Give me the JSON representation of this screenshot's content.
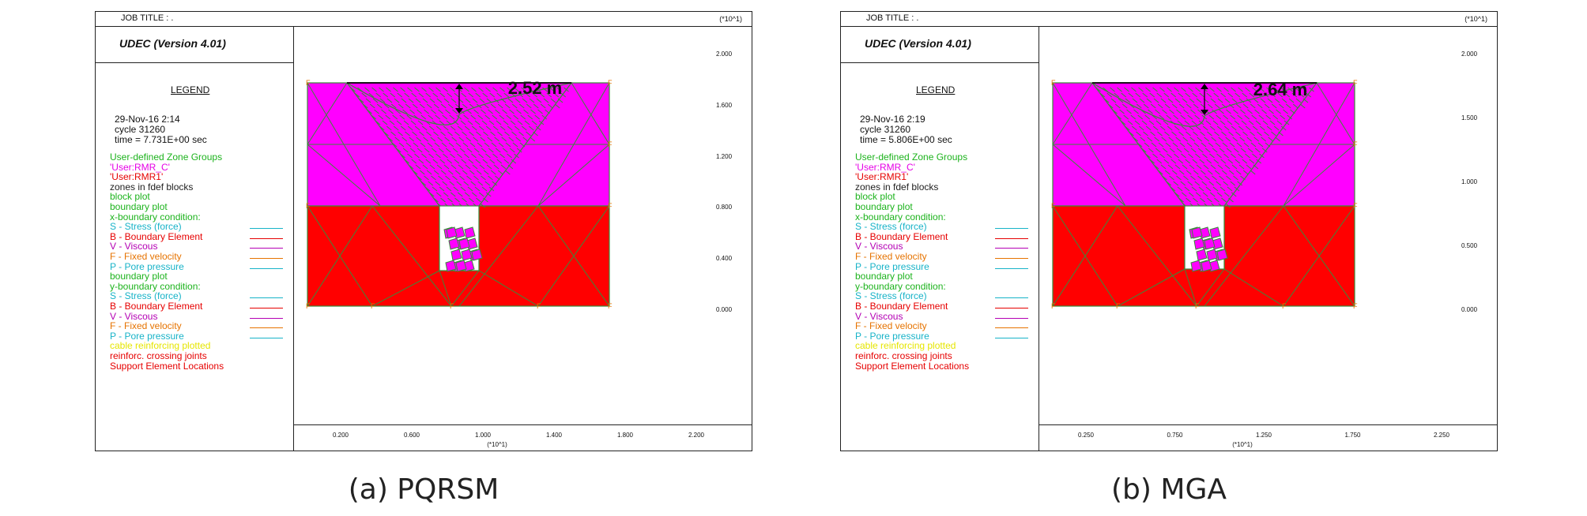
{
  "panels": [
    {
      "job_title": "JOB TITLE :  .",
      "exponent_label": "(*10^1)",
      "version": "UDEC (Version 4.01)",
      "legend_title": "LEGEND",
      "date_line": "29-Nov-16   2:14",
      "cycle_line": "cycle    31260",
      "time_line": "time  =  7.731E+00 sec",
      "width_measure": "2.52 m",
      "y_ticks": [
        "2.000",
        "1.600",
        "1.200",
        "0.800",
        "0.400",
        "0.000"
      ],
      "x_ticks": [
        "0.200",
        "0.600",
        "1.000",
        "1.400",
        "1.800",
        "2.200"
      ],
      "x_multiplier": "(*10^1)",
      "caption": "(a) PQRSM"
    },
    {
      "job_title": "JOB TITLE :  .",
      "exponent_label": "(*10^1)",
      "version": "UDEC (Version 4.01)",
      "legend_title": "LEGEND",
      "date_line": "29-Nov-16   2:19",
      "cycle_line": "cycle    31260",
      "time_line": "time  =  5.806E+00 sec",
      "width_measure": "2.64 m",
      "y_ticks": [
        "2.000",
        "1.500",
        "1.000",
        "0.500",
        "0.000"
      ],
      "x_ticks": [
        "0.250",
        "0.750",
        "1.250",
        "1.750",
        "2.250"
      ],
      "x_multiplier": "(*10^1)",
      "caption": "(b) MGA"
    }
  ],
  "legend_lines": [
    {
      "text": "User-defined Zone Groups",
      "color": "#1db31d"
    },
    {
      "text": "'User:RMR_C'",
      "color": "#e600e6"
    },
    {
      "text": "'User:RMR1'",
      "color": "#e60000"
    },
    {
      "text": "zones in fdef blocks",
      "color": "#222222"
    },
    {
      "text": "block plot",
      "color": "#1db31d"
    },
    {
      "text": "boundary plot",
      "color": "#1db31d"
    },
    {
      "text": " x-boundary condition:",
      "color": "#1db31d"
    },
    {
      "text": " S - Stress (force)",
      "color": "#17b3c8",
      "swatch": "#17b3c8"
    },
    {
      "text": " B - Boundary Element",
      "color": "#e60000",
      "swatch": "#e60000"
    },
    {
      "text": " V - Viscous",
      "color": "#b400b4",
      "swatch": "#b400b4"
    },
    {
      "text": " F - Fixed velocity",
      "color": "#e67300",
      "swatch": "#e67300"
    },
    {
      "text": " P - Pore pressure",
      "color": "#17b3c8",
      "swatch": "#17b3c8"
    },
    {
      "text": "boundary plot",
      "color": "#1db31d"
    },
    {
      "text": " y-boundary condition:",
      "color": "#1db31d"
    },
    {
      "text": " S - Stress (force)",
      "color": "#17b3c8",
      "swatch": "#17b3c8"
    },
    {
      "text": " B - Boundary Element",
      "color": "#e60000",
      "swatch": "#e60000"
    },
    {
      "text": " V - Viscous",
      "color": "#b400b4",
      "swatch": "#b400b4"
    },
    {
      "text": " F - Fixed velocity",
      "color": "#e67300",
      "swatch": "#e67300"
    },
    {
      "text": " P - Pore pressure",
      "color": "#17b3c8",
      "swatch": "#17b3c8"
    },
    {
      "text": "cable reinforcing plotted",
      "color": "#e6e600"
    },
    {
      "text": "reinforc. crossing joints",
      "color": "#e60000"
    },
    {
      "text": "Support Element Locations",
      "color": "#e60000"
    }
  ],
  "colors": {
    "upper_zone": "#ff00ff",
    "lower_zone": "#ff0000",
    "mesh": "#3a8a3a",
    "boundary_marker": "#e67300"
  }
}
